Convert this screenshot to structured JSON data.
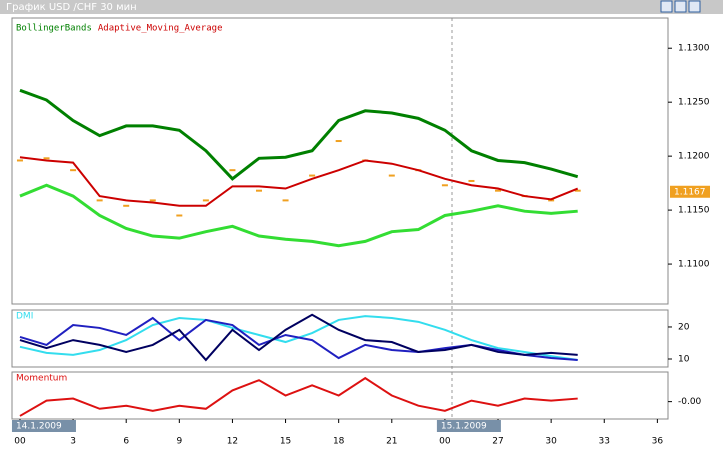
{
  "window": {
    "title": "График USD /CHF 30 мин"
  },
  "chart_data": [
    {
      "type": "line",
      "legend": [
        "BollingerBands",
        "Adaptive_Moving_Average"
      ],
      "x": [
        0,
        1.5,
        3,
        4.5,
        6,
        7.5,
        9,
        10.5,
        12,
        13.5,
        15,
        16.5,
        18,
        19.5,
        21,
        22.5,
        24,
        25.5,
        27,
        28.5,
        30,
        31.5
      ],
      "xlim": [
        -0.45,
        36.6
      ],
      "ylim": [
        1.1063,
        1.1328
      ],
      "yticks": [
        {
          "value": 1.13,
          "label": "1.1300"
        },
        {
          "value": 1.125,
          "label": "1.1250"
        },
        {
          "value": 1.12,
          "label": "1.1200"
        },
        {
          "value": 1.115,
          "label": "1.1150"
        },
        {
          "value": 1.11,
          "label": "1.1100"
        }
      ],
      "last_price": {
        "value": 1.1167,
        "label": "1.1167"
      },
      "series": [
        {
          "name": "BollingerBands",
          "color": "#008000",
          "values": [
            1.1261,
            1.1252,
            1.1233,
            1.1219,
            1.1228,
            1.1228,
            1.1224,
            1.1205,
            1.1179,
            1.1198,
            1.1199,
            1.1205,
            1.1233,
            1.1242,
            1.124,
            1.1235,
            1.1224,
            1.1205,
            1.1196,
            1.1194,
            1.1188,
            1.1181
          ]
        },
        {
          "color": "#33dd33",
          "values": [
            1.1163,
            1.1173,
            1.1163,
            1.1145,
            1.1133,
            1.1126,
            1.1124,
            1.113,
            1.1135,
            1.1126,
            1.1123,
            1.1121,
            1.1117,
            1.1121,
            1.113,
            1.1132,
            1.1145,
            1.1149,
            1.1154,
            1.1149,
            1.1147,
            1.1149
          ]
        },
        {
          "color": "#f0a020",
          "style": "ticks",
          "values": [
            1.1196,
            1.1198,
            1.1187,
            1.1159,
            1.1154,
            1.1159,
            1.1145,
            1.1159,
            1.1187,
            1.1168,
            1.1159,
            1.1182,
            1.1214,
            1.1196,
            1.1182,
            1.1187,
            1.1173,
            1.1177,
            1.1168,
            1.1163,
            1.1159,
            1.1168
          ]
        },
        {
          "name": "Adaptive_Moving_Average",
          "color": "#cc0000",
          "values": [
            1.1199,
            1.1196,
            1.1194,
            1.1163,
            1.1159,
            1.1157,
            1.1154,
            1.1154,
            1.1172,
            1.1172,
            1.117,
            1.1179,
            1.1187,
            1.1196,
            1.1193,
            1.1187,
            1.1179,
            1.1173,
            1.117,
            1.1163,
            1.116,
            1.117
          ]
        }
      ]
    },
    {
      "type": "line",
      "title": "DMI",
      "x": [
        0,
        1.5,
        3,
        4.5,
        6,
        7.5,
        9,
        10.5,
        12,
        13.5,
        15,
        16.5,
        18,
        19.5,
        21,
        22.5,
        24,
        25.5,
        27,
        28.5,
        30,
        31.5
      ],
      "xlim": [
        -0.45,
        36.6
      ],
      "ylim": [
        7.5,
        25.3
      ],
      "yticks": [
        10,
        20
      ],
      "series": [
        {
          "color": "#33ddee",
          "values": [
            13.8,
            11.9,
            11.3,
            12.8,
            15.9,
            20.6,
            22.8,
            22.2,
            19.7,
            17.5,
            15.3,
            18.1,
            22.2,
            23.4,
            22.8,
            21.6,
            19.1,
            15.9,
            13.4,
            12.2,
            10.9,
            9.7
          ]
        },
        {
          "color": "#2020c0",
          "values": [
            16.9,
            14.4,
            20.6,
            19.7,
            17.5,
            22.8,
            15.9,
            22.2,
            20.6,
            14.4,
            17.5,
            15.9,
            10.3,
            14.4,
            12.8,
            12.2,
            13.4,
            14.4,
            12.8,
            11.3,
            10.3,
            9.7
          ]
        },
        {
          "color": "#000060",
          "values": [
            15.9,
            13.4,
            15.9,
            14.4,
            12.2,
            14.4,
            19.1,
            9.7,
            19.1,
            12.8,
            19.1,
            23.8,
            19.1,
            15.9,
            15.3,
            12.2,
            12.8,
            14.4,
            12.2,
            11.3,
            11.9,
            11.3
          ]
        }
      ]
    },
    {
      "type": "line",
      "title": "Momentum",
      "x": [
        0,
        1.5,
        3,
        4.5,
        6,
        7.5,
        9,
        10.5,
        12,
        13.5,
        15,
        16.5,
        18,
        19.5,
        21,
        22.5,
        24,
        25.5,
        27,
        28.5,
        30,
        31.5
      ],
      "xlim": [
        -0.45,
        36.6
      ],
      "ylim": [
        -0.85,
        1.45
      ],
      "yticks": [
        {
          "value": 0,
          "label": "-0.00"
        }
      ],
      "xticks": [
        {
          "value": 0,
          "label": "00"
        },
        3,
        6,
        9,
        12,
        15,
        18,
        21,
        {
          "value": 24,
          "label": "00"
        },
        27,
        30,
        33,
        36
      ],
      "date_labels": [
        {
          "value": 0,
          "label": "14.1.2009"
        },
        {
          "value": 24,
          "label": "15.1.2009"
        }
      ],
      "series": [
        {
          "color": "#dd1111",
          "values": [
            -0.7,
            0.05,
            0.15,
            -0.35,
            -0.2,
            -0.45,
            -0.2,
            -0.35,
            0.55,
            1.05,
            0.3,
            0.8,
            0.3,
            1.15,
            0.3,
            -0.2,
            -0.45,
            0.05,
            -0.2,
            0.15,
            0.05,
            0.15
          ]
        }
      ]
    }
  ]
}
